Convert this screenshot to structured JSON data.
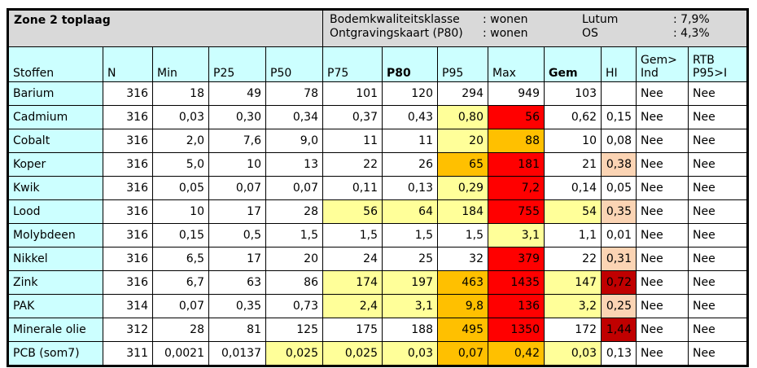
{
  "title": "Zone 2 toplaag",
  "info": [
    [
      "Bodemkwaliteitsklasse",
      ": wonen",
      "Lutum",
      ": 7,9%"
    ],
    [
      "Ontgravingskaart (P80)",
      ": wonen",
      "OS",
      ": 4,3%"
    ]
  ],
  "headers": [
    "Stoffen",
    "N",
    "Min",
    "P25",
    "P50",
    "P75",
    "P80",
    "P95",
    "Max",
    "Gem",
    "HI",
    "Gem>\nInd",
    "RTB\nP95>I"
  ],
  "rows": [
    {
      "cells": [
        "Barium",
        "316",
        "18",
        "49",
        "78",
        "101",
        "120",
        "294",
        "949",
        "103",
        "",
        "Nee",
        "Nee"
      ],
      "colors": [
        "",
        "",
        "",
        "",
        "",
        "",
        "",
        "",
        "",
        "",
        "",
        "",
        ""
      ]
    },
    {
      "cells": [
        "Cadmium",
        "316",
        "0,03",
        "0,30",
        "0,34",
        "0,37",
        "0,43",
        "0,80",
        "56",
        "0,62",
        "0,15",
        "Nee",
        "Nee"
      ],
      "colors": [
        "",
        "",
        "",
        "",
        "",
        "",
        "",
        "y",
        "r",
        "",
        "",
        "",
        ""
      ]
    },
    {
      "cells": [
        "Cobalt",
        "316",
        "2,0",
        "7,6",
        "9,0",
        "11",
        "11",
        "20",
        "88",
        "10",
        "0,08",
        "Nee",
        "Nee"
      ],
      "colors": [
        "",
        "",
        "",
        "",
        "",
        "",
        "",
        "y",
        "o",
        "",
        "",
        "",
        ""
      ]
    },
    {
      "cells": [
        "Koper",
        "316",
        "5,0",
        "10",
        "13",
        "22",
        "26",
        "65",
        "181",
        "21",
        "0,38",
        "Nee",
        "Nee"
      ],
      "colors": [
        "",
        "",
        "",
        "",
        "",
        "",
        "",
        "o",
        "r",
        "",
        "p",
        "",
        ""
      ]
    },
    {
      "cells": [
        "Kwik",
        "316",
        "0,05",
        "0,07",
        "0,07",
        "0,11",
        "0,13",
        "0,29",
        "7,2",
        "0,14",
        "0,05",
        "Nee",
        "Nee"
      ],
      "colors": [
        "",
        "",
        "",
        "",
        "",
        "",
        "",
        "y",
        "r",
        "",
        "",
        "",
        ""
      ]
    },
    {
      "cells": [
        "Lood",
        "316",
        "10",
        "17",
        "28",
        "56",
        "64",
        "184",
        "755",
        "54",
        "0,35",
        "Nee",
        "Nee"
      ],
      "colors": [
        "",
        "",
        "",
        "",
        "",
        "y",
        "y",
        "y",
        "r",
        "y",
        "p",
        "",
        ""
      ]
    },
    {
      "cells": [
        "Molybdeen",
        "316",
        "0,15",
        "0,5",
        "1,5",
        "1,5",
        "1,5",
        "1,5",
        "3,1",
        "1,1",
        "0,01",
        "Nee",
        "Nee"
      ],
      "colors": [
        "",
        "",
        "",
        "",
        "",
        "",
        "",
        "",
        "y",
        "",
        "",
        "",
        ""
      ]
    },
    {
      "cells": [
        "Nikkel",
        "316",
        "6,5",
        "17",
        "20",
        "24",
        "25",
        "32",
        "379",
        "22",
        "0,31",
        "Nee",
        "Nee"
      ],
      "colors": [
        "",
        "",
        "",
        "",
        "",
        "",
        "",
        "",
        "r",
        "",
        "p",
        "",
        ""
      ]
    },
    {
      "cells": [
        "Zink",
        "316",
        "6,7",
        "63",
        "86",
        "174",
        "197",
        "463",
        "1435",
        "147",
        "0,72",
        "Nee",
        "Nee"
      ],
      "colors": [
        "",
        "",
        "",
        "",
        "",
        "y",
        "y",
        "o",
        "r",
        "y",
        "d",
        "",
        ""
      ]
    },
    {
      "cells": [
        "PAK",
        "314",
        "0,07",
        "0,35",
        "0,73",
        "2,4",
        "3,1",
        "9,8",
        "136",
        "3,2",
        "0,25",
        "Nee",
        "Nee"
      ],
      "colors": [
        "",
        "",
        "",
        "",
        "",
        "y",
        "y",
        "o",
        "r",
        "y",
        "p",
        "",
        ""
      ]
    },
    {
      "cells": [
        "Minerale olie",
        "312",
        "28",
        "81",
        "125",
        "175",
        "188",
        "495",
        "1350",
        "172",
        "1,44",
        "Nee",
        "Nee"
      ],
      "colors": [
        "",
        "",
        "",
        "",
        "",
        "",
        "",
        "o",
        "r",
        "",
        "d",
        "",
        ""
      ]
    },
    {
      "cells": [
        "PCB (som7)",
        "311",
        "0,0021",
        "0,0137",
        "0,025",
        "0,025",
        "0,03",
        "0,07",
        "0,42",
        "0,03",
        "0,13",
        "Nee",
        "Nee"
      ],
      "colors": [
        "",
        "",
        "",
        "",
        "y",
        "y",
        "y",
        "o",
        "o",
        "y",
        "",
        "",
        ""
      ]
    }
  ],
  "legend_colors": {
    "y": "#ffff99",
    "o": "#ffc000",
    "r": "#ff0000",
    "p": "#fbd4b4",
    "d": "#c00000",
    "header": "#ccffff",
    "title": "#d9d9d9"
  }
}
